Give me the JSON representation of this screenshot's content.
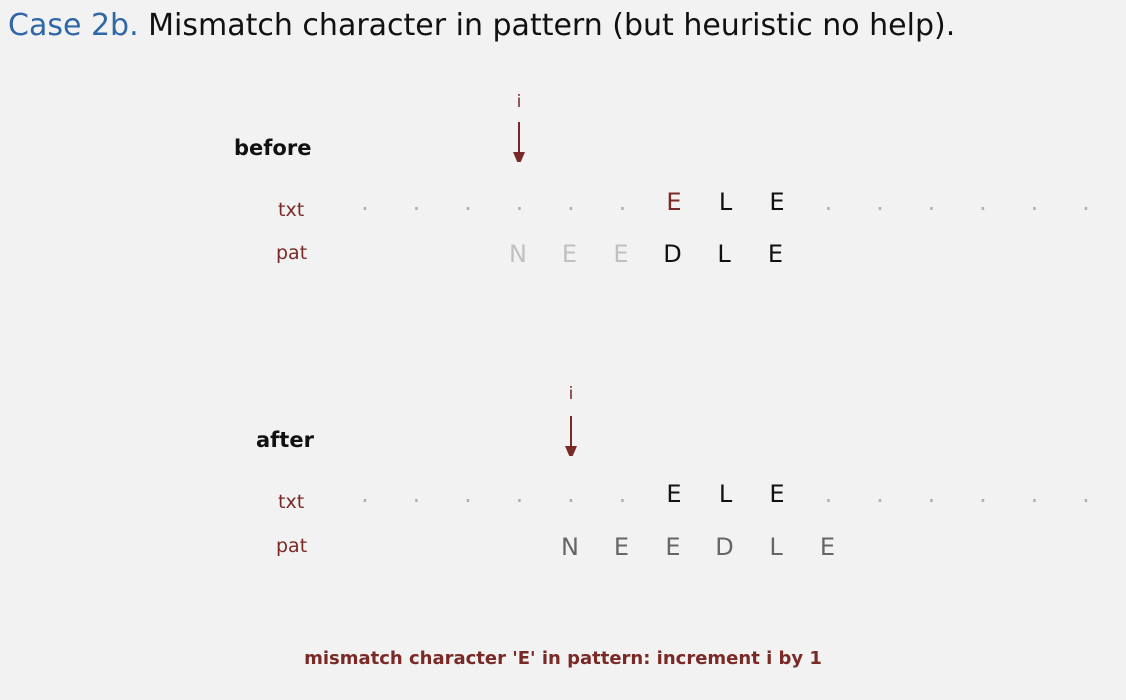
{
  "title": {
    "case": "Case 2b.",
    "text": "Mismatch character in pattern (but heuristic no help)."
  },
  "before": {
    "heading": "before",
    "i_label": "i",
    "txt_label": "txt",
    "pat_label": "pat",
    "txt": [
      ".",
      ".",
      ".",
      ".",
      ".",
      ".",
      "E",
      "L",
      "E",
      ".",
      ".",
      ".",
      ".",
      ".",
      "."
    ],
    "txt_styles": [
      "dot",
      "dot",
      "dot",
      "dot",
      "dot",
      "dot",
      "mismatch",
      "match",
      "match",
      "dot",
      "dot",
      "dot",
      "dot",
      "dot",
      "dot"
    ],
    "pat": [
      "N",
      "E",
      "E",
      "D",
      "L",
      "E"
    ],
    "pat_styles": [
      "faded",
      "faded",
      "faded",
      "black",
      "black",
      "black"
    ]
  },
  "after": {
    "heading": "after",
    "i_label": "i",
    "txt_label": "txt",
    "pat_label": "pat",
    "txt": [
      ".",
      ".",
      ".",
      ".",
      ".",
      ".",
      "E",
      "L",
      "E",
      ".",
      ".",
      ".",
      ".",
      ".",
      "."
    ],
    "txt_styles": [
      "dot",
      "dot",
      "dot",
      "dot",
      "dot",
      "dot",
      "black",
      "black",
      "black",
      "dot",
      "dot",
      "dot",
      "dot",
      "dot",
      "dot"
    ],
    "pat": [
      "N",
      "E",
      "E",
      "D",
      "L",
      "E"
    ],
    "pat_styles": [
      "gray",
      "gray",
      "gray",
      "gray",
      "gray",
      "gray"
    ]
  },
  "note": "mismatch character 'E' in pattern:  increment i by 1",
  "colors": {
    "accent": "#7a2a26",
    "title_case": "#2f67a7",
    "dot": "#b0b0b0",
    "faded": "#c0c0c0",
    "gray": "#666666",
    "black": "#111111"
  }
}
